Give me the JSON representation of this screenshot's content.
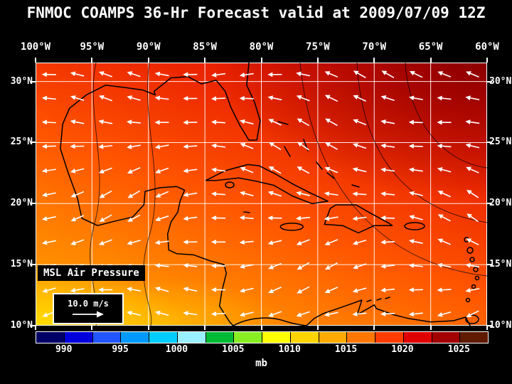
{
  "title": "FNMOC COAMPS 36-Hr Forecast valid at 2009/07/09 12Z",
  "axes": {
    "lon_labels": [
      "100°W",
      "95°W",
      "90°W",
      "85°W",
      "80°W",
      "75°W",
      "70°W",
      "65°W",
      "60°W"
    ],
    "lat_labels": [
      "30°N",
      "25°N",
      "20°N",
      "15°N",
      "10°N"
    ]
  },
  "legend": {
    "field_label": "MSL Air Pressure",
    "wind_scale_label": "10.0 m/s"
  },
  "colorbar": {
    "units_label": "mb",
    "tick_labels": [
      "990",
      "995",
      "1000",
      "1005",
      "1010",
      "1015",
      "1020",
      "1025"
    ],
    "segment_colors": [
      "#000066",
      "#0000dd",
      "#2255ff",
      "#0099ff",
      "#00ccff",
      "#99eeff",
      "#00bb33",
      "#88ee22",
      "#ffff00",
      "#ffd400",
      "#ffaa00",
      "#ff7700",
      "#ff3c00",
      "#e00000",
      "#a30000",
      "#5f1a00"
    ]
  },
  "field_colors": {
    "high_pressure": "#8c0000",
    "mid_pressure": "#ff5500",
    "low_band": "#ffd900",
    "grid": "#ffffff",
    "coastline": "#000000"
  },
  "wind_field": {
    "arrow_color": "#ffffff",
    "cols": 16,
    "rows": 11
  }
}
